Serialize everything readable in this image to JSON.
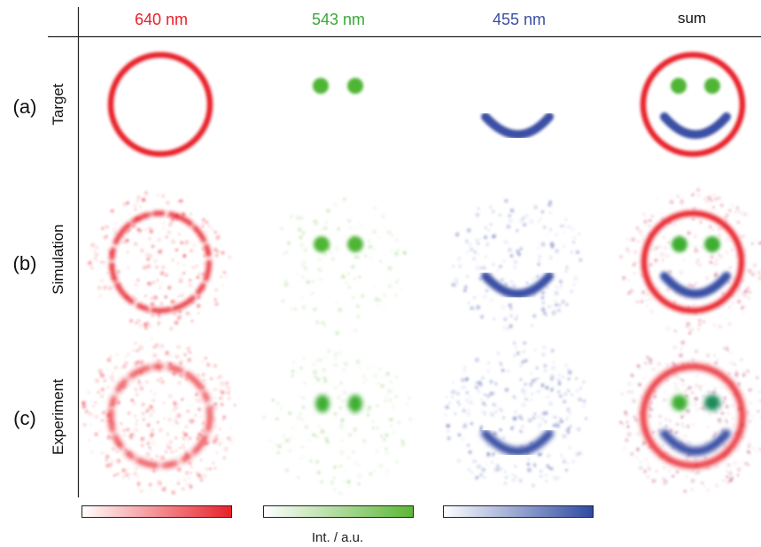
{
  "columns": [
    {
      "label": "640 nm",
      "color": "#e8202a"
    },
    {
      "label": "543 nm",
      "color": "#3aa837"
    },
    {
      "label": "455 nm",
      "color": "#3a4fa4"
    },
    {
      "label": "sum",
      "color": "#111111"
    }
  ],
  "rows": [
    {
      "letter": "(a)",
      "label": "Target"
    },
    {
      "letter": "(b)",
      "label": "Simulation"
    },
    {
      "letter": "(c)",
      "label": "Experiment"
    }
  ],
  "colorbars": [
    {
      "color": "#e8202a"
    },
    {
      "color": "#5cb737"
    },
    {
      "color": "#2e4aa0"
    }
  ],
  "colorbar_label": "Int. / a.u."
}
